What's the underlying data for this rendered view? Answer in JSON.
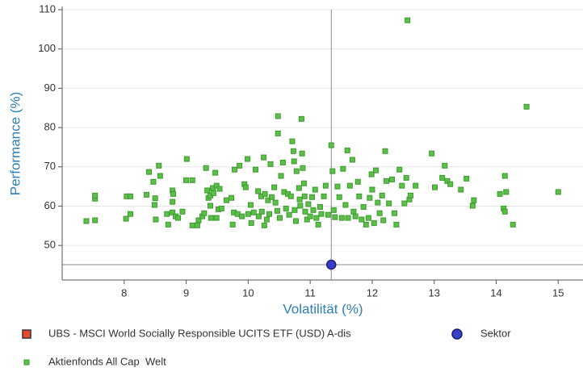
{
  "chart_data": {
    "type": "scatter",
    "xlabel": "Volatilität (%)",
    "ylabel": "Performance (%)",
    "xlim": [
      7,
      15.4
    ],
    "ylim": [
      41.2,
      110
    ],
    "xticks": [
      8,
      9,
      10,
      11,
      12,
      13,
      14,
      15
    ],
    "yticks": [
      50,
      60,
      70,
      80,
      90,
      100,
      110
    ],
    "grid": true,
    "series": [
      {
        "name": "UBS - MSCI World Socially Responsible UCITS ETF (USD) A-dis",
        "color": "#e8492d",
        "x": [],
        "y": []
      },
      {
        "name": "Sektor",
        "color": "#3b3fc4",
        "x": [
          11.34
        ],
        "y": [
          45.1
        ]
      },
      {
        "name": "Aktienfonds All Cap  Welt",
        "color": "#5cbf4a",
        "x": [
          7.39,
          7.53,
          7.53,
          7.53,
          8.04,
          8.1,
          8.03,
          8.1,
          8.36,
          8.4,
          8.47,
          8.49,
          8.51,
          8.56,
          8.58,
          8.5,
          8.69,
          8.71,
          8.78,
          8.78,
          8.79,
          8.78,
          8.83,
          8.87,
          8.94,
          9.0,
          9.01,
          9.1,
          9.1,
          9.18,
          9.2,
          9.26,
          9.29,
          9.32,
          9.34,
          9.36,
          9.39,
          9.43,
          9.4,
          9.47,
          9.49,
          9.54,
          9.49,
          9.52,
          9.57,
          9.39,
          9.44,
          9.65,
          9.73,
          9.75,
          9.78,
          9.77,
          9.83,
          9.86,
          9.9,
          9.94,
          9.96,
          9.99,
          10.0,
          10.04,
          10.05,
          10.09,
          10.12,
          10.16,
          10.17,
          10.21,
          10.22,
          10.25,
          10.26,
          10.27,
          10.3,
          10.32,
          10.34,
          10.36,
          10.38,
          10.42,
          10.44,
          10.47,
          10.48,
          10.48,
          10.51,
          10.53,
          10.56,
          10.58,
          10.61,
          10.64,
          10.66,
          10.69,
          10.71,
          10.73,
          10.74,
          10.75,
          10.77,
          10.78,
          10.82,
          10.83,
          10.84,
          10.86,
          10.87,
          10.88,
          10.9,
          10.91,
          10.92,
          10.95,
          10.97,
          11.0,
          11.03,
          11.05,
          11.08,
          11.1,
          11.13,
          11.16,
          11.18,
          11.22,
          11.25,
          11.29,
          11.34,
          11.36,
          11.38,
          11.4,
          11.44,
          11.47,
          11.51,
          11.53,
          11.57,
          11.6,
          11.61,
          11.64,
          11.68,
          11.7,
          11.73,
          11.77,
          11.79,
          11.83,
          11.86,
          11.9,
          11.94,
          11.96,
          11.99,
          12.0,
          12.03,
          12.06,
          12.09,
          12.12,
          12.16,
          12.18,
          12.21,
          12.23,
          12.27,
          12.32,
          12.36,
          12.39,
          12.44,
          12.48,
          12.52,
          12.55,
          12.57,
          12.6,
          12.62,
          12.7,
          12.96,
          13.01,
          13.13,
          13.17,
          13.21,
          13.26,
          13.43,
          13.52,
          13.62,
          13.64,
          14.06,
          14.12,
          14.14,
          14.14,
          14.16,
          14.27,
          14.49,
          15.0
        ],
        "y": [
          56.2,
          56.4,
          61.9,
          62.7,
          62.5,
          62.5,
          56.8,
          58.0,
          62.9,
          68.7,
          66.2,
          60.3,
          56.6,
          70.3,
          67.7,
          62.0,
          58.0,
          55.3,
          58.4,
          64.0,
          63.1,
          61.1,
          57.4,
          57.0,
          58.6,
          66.6,
          72.0,
          66.6,
          55.1,
          55.1,
          56.4,
          57.4,
          58.2,
          69.7,
          64.0,
          62.1,
          60.1,
          64.6,
          57.0,
          68.5,
          65.2,
          64.4,
          57.0,
          59.2,
          59.4,
          62.7,
          63.3,
          61.5,
          62.1,
          55.3,
          69.3,
          58.4,
          58.0,
          70.3,
          57.4,
          65.6,
          64.8,
          72.0,
          58.0,
          60.3,
          55.7,
          58.4,
          69.3,
          63.8,
          57.4,
          62.5,
          58.6,
          72.4,
          55.1,
          63.1,
          56.6,
          61.5,
          58.0,
          70.7,
          62.3,
          64.8,
          60.9,
          58.8,
          82.9,
          78.5,
          57.0,
          67.7,
          71.1,
          63.6,
          59.4,
          63.1,
          57.8,
          62.5,
          76.5,
          74.0,
          71.4,
          59.0,
          56.2,
          68.9,
          64.6,
          61.7,
          60.1,
          82.2,
          73.4,
          69.7,
          65.8,
          62.5,
          58.6,
          56.6,
          60.5,
          57.4,
          62.3,
          59.0,
          64.2,
          57.0,
          55.3,
          59.8,
          58.0,
          62.5,
          65.2,
          57.8,
          75.5,
          68.9,
          59.0,
          57.2,
          65.0,
          62.3,
          57.0,
          69.5,
          60.3,
          74.2,
          57.0,
          65.2,
          71.8,
          58.6,
          57.4,
          66.2,
          62.5,
          56.6,
          59.8,
          55.3,
          57.0,
          62.1,
          68.1,
          64.2,
          55.7,
          69.1,
          60.9,
          58.2,
          62.7,
          56.4,
          74.0,
          66.4,
          60.7,
          66.8,
          58.2,
          55.3,
          69.3,
          65.2,
          60.7,
          67.2,
          107.3,
          61.7,
          62.7,
          65.2,
          73.4,
          64.8,
          67.2,
          70.3,
          66.4,
          65.6,
          64.2,
          67.0,
          60.1,
          61.5,
          63.1,
          59.4,
          58.6,
          67.7,
          63.6,
          55.3,
          85.3,
          63.6
        ]
      }
    ]
  }
}
